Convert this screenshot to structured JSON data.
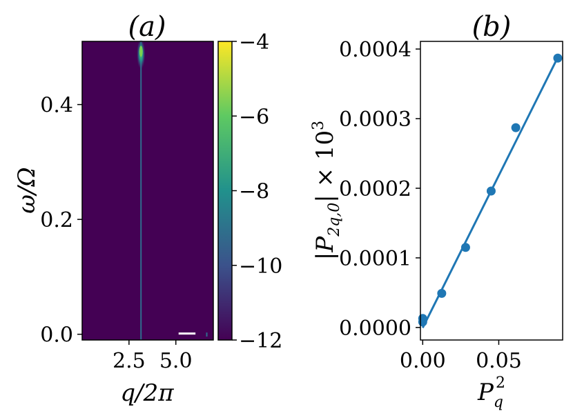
{
  "chart_data": [
    {
      "type": "heatmap",
      "title": "(a)",
      "xlabel": "q/2π",
      "ylabel": "ω/Ω",
      "xticks": [
        "2.5",
        "5.0"
      ],
      "xtick_values": [
        2.5,
        5.0
      ],
      "yticks": [
        "0.0",
        "0.2",
        "0.4"
      ],
      "ytick_values": [
        0.0,
        0.2,
        0.4
      ],
      "xlim": [
        0.0,
        7.0
      ],
      "ylim": [
        -0.01,
        0.51
      ],
      "background_color": "#440154",
      "colorbar": {
        "ticks": [
          "−4",
          "−6",
          "−8",
          "−10",
          "−12"
        ],
        "tick_values": [
          -4,
          -6,
          -8,
          -10,
          -12
        ],
        "range": [
          -12,
          -4
        ],
        "colormap": [
          "#440154",
          "#3b528b",
          "#21918c",
          "#5ec962",
          "#fde725"
        ]
      },
      "features": {
        "vertical_line_q": 3.14,
        "peak": {
          "q": 3.14,
          "omega": 0.5
        },
        "white_segment": {
          "q_range": [
            5.0,
            5.9
          ],
          "omega": 0.0
        }
      }
    },
    {
      "type": "scatter",
      "title": "(b)",
      "xlabel": "P_q^2",
      "ylabel": "|P_{2q,0}| × 10^3",
      "xticks": [
        "0.00",
        "0.05"
      ],
      "xtick_values": [
        0.0,
        0.05
      ],
      "yticks": [
        "0.0000",
        "0.0001",
        "0.0002",
        "0.0003",
        "0.0004"
      ],
      "ytick_values": [
        0.0,
        0.0001,
        0.0002,
        0.0003,
        0.0004
      ],
      "xlim": [
        -0.0015,
        0.092
      ],
      "ylim": [
        -1.8e-05,
        0.000411
      ],
      "color": "#1f77b4",
      "series": [
        {
          "x": [
            0.0,
            0.0,
            0.0125,
            0.0282,
            0.045,
            0.0612,
            0.0888
          ],
          "y": [
            8e-06,
            1.3e-05,
            4.9e-05,
            0.000115,
            0.000196,
            0.000287,
            0.000387
          ]
        }
      ],
      "fit_line": {
        "x": [
          0.0,
          0.0888
        ],
        "y": [
          -5e-07,
          0.000388
        ]
      }
    }
  ]
}
